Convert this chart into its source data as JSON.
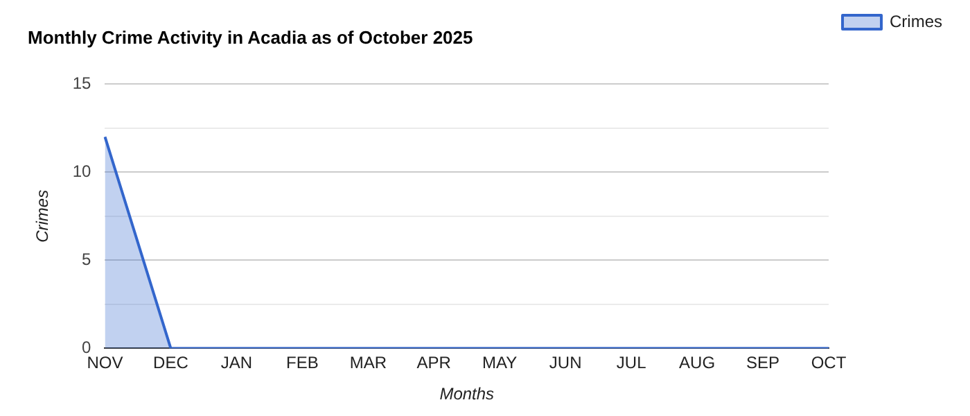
{
  "chart_data": {
    "type": "area",
    "title": "Monthly Crime Activity in Acadia as of October 2025",
    "xlabel": "Months",
    "ylabel": "Crimes",
    "categories": [
      "NOV",
      "DEC",
      "JAN",
      "FEB",
      "MAR",
      "APR",
      "MAY",
      "JUN",
      "JUL",
      "AUG",
      "SEP",
      "OCT"
    ],
    "series": [
      {
        "name": "Crimes",
        "color": "#3366cc",
        "values": [
          12,
          0,
          0,
          0,
          0,
          0,
          0,
          0,
          0,
          0,
          0,
          0
        ]
      }
    ],
    "ylim": [
      0,
      15
    ],
    "yticks": [
      0,
      {
        "value": 2.5,
        "label": null
      },
      5,
      {
        "value": 7.5,
        "label": null
      },
      10,
      {
        "value": 12.5,
        "label": null
      },
      15
    ],
    "grid": "y",
    "legend": "top right",
    "marker": "none"
  }
}
